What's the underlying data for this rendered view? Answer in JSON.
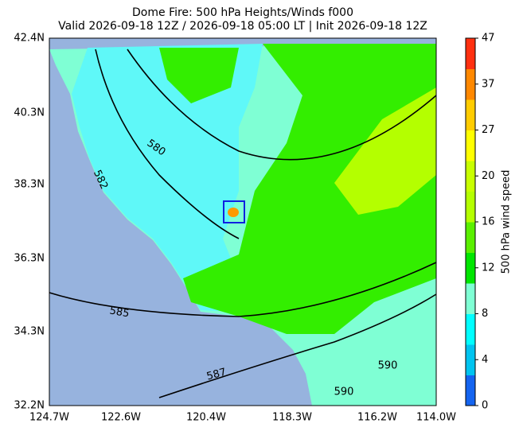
{
  "map": {
    "title": [
      "Dome Fire: 500 hPa Heights/Winds f000",
      "Valid 2026-09-18 12Z / 2026-09-18 05:00 LT | Init 2026-09-18 12Z"
    ],
    "lon_ticks": [
      "124.7W",
      "122.6W",
      "120.4W",
      "118.3W",
      "116.2W",
      "114.0W"
    ],
    "lat_ticks": [
      "42.4N",
      "40.3N",
      "38.3N",
      "36.3N",
      "34.3N",
      "32.2N"
    ],
    "contour_labels": [
      "580",
      "582",
      "585",
      "587",
      "590",
      "590"
    ]
  },
  "colorbar": {
    "label": "500 hPa wind speed",
    "ticks": [
      0,
      4,
      8,
      12,
      16,
      20,
      27,
      37,
      47
    ],
    "colors": [
      "#1464f0",
      "#00c4f0",
      "#00ffff",
      "#7fffd4",
      "#00e600",
      "#5af000",
      "#b4ff00",
      "#c8ff00",
      "#ffff00",
      "#ffcc00",
      "#ff8800",
      "#ff3010"
    ]
  }
}
